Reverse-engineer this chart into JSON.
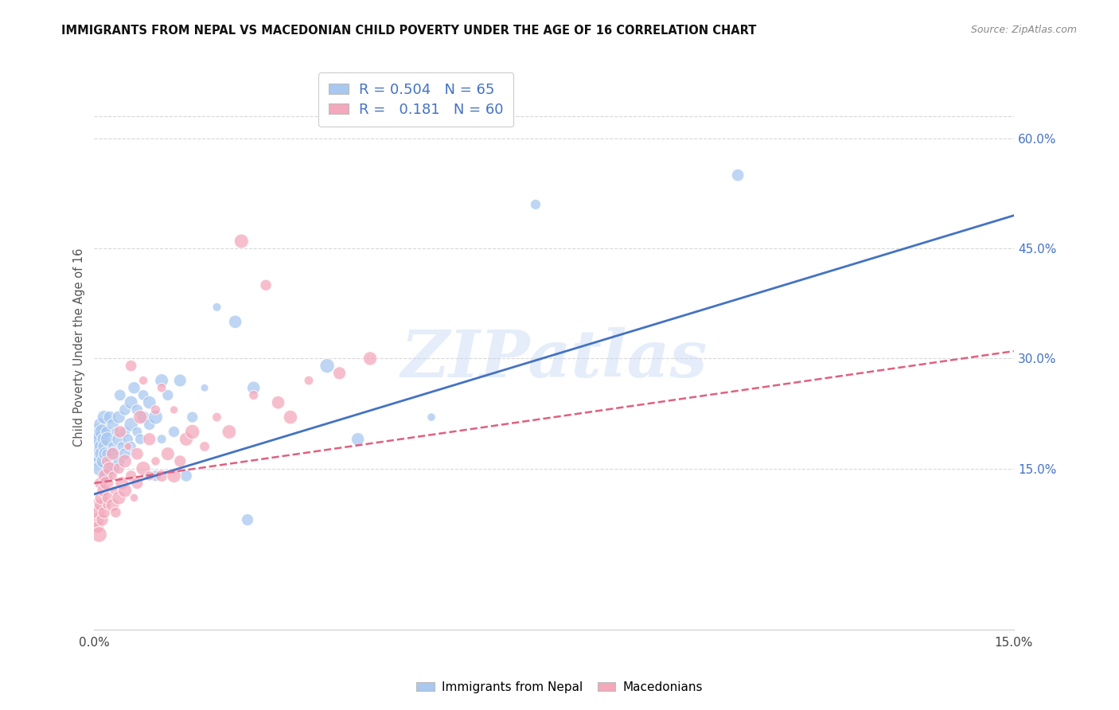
{
  "title": "IMMIGRANTS FROM NEPAL VS MACEDONIAN CHILD POVERTY UNDER THE AGE OF 16 CORRELATION CHART",
  "source": "Source: ZipAtlas.com",
  "ylabel": "Child Poverty Under the Age of 16",
  "yaxis_labels": [
    "60.0%",
    "45.0%",
    "30.0%",
    "15.0%"
  ],
  "yaxis_values": [
    0.6,
    0.45,
    0.3,
    0.15
  ],
  "xlim": [
    0.0,
    0.15
  ],
  "ylim": [
    -0.07,
    0.7
  ],
  "nepal_R": 0.504,
  "nepal_N": 65,
  "mace_R": 0.181,
  "mace_N": 60,
  "nepal_color": "#a8c8f0",
  "mace_color": "#f4a8bc",
  "nepal_line_color": "#4472c4",
  "mace_line_color": "#e06080",
  "nepal_line_x0": 0.0,
  "nepal_line_y0": 0.115,
  "nepal_line_x1": 0.15,
  "nepal_line_y1": 0.495,
  "mace_line_x0": 0.0,
  "mace_line_y0": 0.13,
  "mace_line_x1": 0.15,
  "mace_line_y1": 0.31,
  "nepal_scatter_x": [
    0.0005,
    0.0006,
    0.0007,
    0.0008,
    0.0009,
    0.001,
    0.001,
    0.001,
    0.0012,
    0.0013,
    0.0015,
    0.0015,
    0.0016,
    0.0017,
    0.0018,
    0.002,
    0.002,
    0.002,
    0.0022,
    0.0023,
    0.0025,
    0.003,
    0.003,
    0.003,
    0.0032,
    0.0035,
    0.004,
    0.004,
    0.004,
    0.0042,
    0.0045,
    0.005,
    0.005,
    0.005,
    0.0055,
    0.006,
    0.006,
    0.006,
    0.0065,
    0.007,
    0.007,
    0.0075,
    0.008,
    0.008,
    0.009,
    0.009,
    0.01,
    0.01,
    0.011,
    0.011,
    0.012,
    0.013,
    0.014,
    0.015,
    0.016,
    0.018,
    0.02,
    0.023,
    0.025,
    0.026,
    0.038,
    0.043,
    0.055,
    0.072,
    0.105
  ],
  "nepal_scatter_y": [
    0.18,
    0.2,
    0.17,
    0.19,
    0.16,
    0.15,
    0.18,
    0.21,
    0.17,
    0.2,
    0.16,
    0.19,
    0.22,
    0.18,
    0.17,
    0.14,
    0.17,
    0.2,
    0.19,
    0.16,
    0.22,
    0.15,
    0.18,
    0.21,
    0.17,
    0.2,
    0.16,
    0.19,
    0.22,
    0.25,
    0.18,
    0.17,
    0.2,
    0.23,
    0.19,
    0.21,
    0.24,
    0.18,
    0.26,
    0.2,
    0.23,
    0.19,
    0.22,
    0.25,
    0.21,
    0.24,
    0.14,
    0.22,
    0.19,
    0.27,
    0.25,
    0.2,
    0.27,
    0.14,
    0.22,
    0.26,
    0.37,
    0.35,
    0.08,
    0.26,
    0.29,
    0.19,
    0.22,
    0.51,
    0.55
  ],
  "mace_scatter_x": [
    0.0004,
    0.0005,
    0.0006,
    0.0007,
    0.0008,
    0.001,
    0.001,
    0.0012,
    0.0013,
    0.0015,
    0.0016,
    0.0018,
    0.002,
    0.002,
    0.002,
    0.0022,
    0.0025,
    0.003,
    0.003,
    0.003,
    0.0032,
    0.0035,
    0.004,
    0.004,
    0.0042,
    0.0045,
    0.005,
    0.005,
    0.0055,
    0.006,
    0.006,
    0.0065,
    0.007,
    0.007,
    0.0075,
    0.008,
    0.008,
    0.009,
    0.009,
    0.01,
    0.01,
    0.011,
    0.011,
    0.012,
    0.013,
    0.013,
    0.014,
    0.015,
    0.016,
    0.018,
    0.02,
    0.022,
    0.024,
    0.026,
    0.028,
    0.03,
    0.032,
    0.035,
    0.04,
    0.045
  ],
  "mace_scatter_y": [
    0.08,
    0.1,
    0.07,
    0.09,
    0.06,
    0.1,
    0.13,
    0.11,
    0.08,
    0.12,
    0.09,
    0.14,
    0.1,
    0.13,
    0.16,
    0.11,
    0.15,
    0.1,
    0.14,
    0.17,
    0.12,
    0.09,
    0.11,
    0.15,
    0.2,
    0.13,
    0.12,
    0.16,
    0.18,
    0.14,
    0.29,
    0.11,
    0.13,
    0.17,
    0.22,
    0.15,
    0.27,
    0.14,
    0.19,
    0.16,
    0.23,
    0.14,
    0.26,
    0.17,
    0.14,
    0.23,
    0.16,
    0.19,
    0.2,
    0.18,
    0.22,
    0.2,
    0.46,
    0.25,
    0.4,
    0.24,
    0.22,
    0.27,
    0.28,
    0.3
  ],
  "watermark_text": "ZIPatlas",
  "legend_label1": "Immigrants from Nepal",
  "legend_label2": "Macedonians",
  "background_color": "#ffffff",
  "grid_color": "#d8d8d8"
}
